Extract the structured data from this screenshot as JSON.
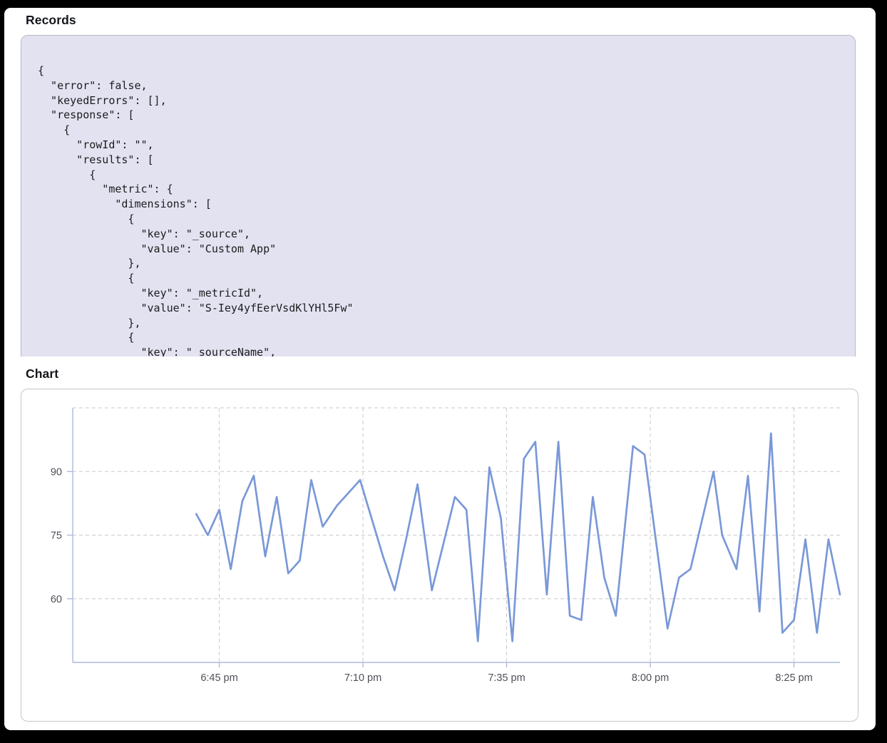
{
  "records": {
    "heading": "Records",
    "code_lines": [
      "{",
      "  \"error\": false,",
      "  \"keyedErrors\": [],",
      "  \"response\": [",
      "    {",
      "      \"rowId\": \"\",",
      "      \"results\": [",
      "        {",
      "          \"metric\": {",
      "            \"dimensions\": [",
      "              {",
      "                \"key\": \"_source\",",
      "                \"value\": \"Custom App\"",
      "              },",
      "              {",
      "                \"key\": \"_metricId\",",
      "                \"value\": \"S-Iey4yfEerVsdKlYHl5Fw\"",
      "              },",
      "              {",
      "                \"key\": \"_sourceName\","
    ]
  },
  "chart": {
    "heading": "Chart"
  },
  "palette": {
    "code_background": "#e3e2f1",
    "series_line": "#7a98d8",
    "axis": "#aeb9dd",
    "gridline": "#c9c9c9",
    "tick_label": "#4d5058"
  },
  "chart_data": {
    "type": "line",
    "title": "",
    "xlabel": "",
    "ylabel": "",
    "grid": true,
    "legend": "none",
    "x_unit": "minutes after 6:00 pm",
    "x_domain": [
      19.5,
      153
    ],
    "y_domain": [
      45,
      105
    ],
    "x_ticks": [
      {
        "t": 45,
        "label": "6:45 pm"
      },
      {
        "t": 70,
        "label": "7:10 pm"
      },
      {
        "t": 95,
        "label": "7:35 pm"
      },
      {
        "t": 120,
        "label": "8:00 pm"
      },
      {
        "t": 145,
        "label": "8:25 pm"
      }
    ],
    "y_ticks": [
      {
        "v": 60,
        "label": "60"
      },
      {
        "v": 75,
        "label": "75"
      },
      {
        "v": 90,
        "label": "90"
      }
    ],
    "top_boundary_value": 105,
    "x": [
      41,
      43,
      45,
      47,
      49,
      51,
      53,
      55,
      57,
      59,
      61,
      63,
      65.5,
      67.5,
      69.5,
      71.5,
      73.5,
      75.5,
      77.5,
      79.5,
      82,
      84,
      86,
      88,
      90,
      92,
      94,
      96,
      98,
      100,
      102,
      104,
      106,
      108,
      110,
      112,
      114,
      117,
      119,
      123,
      125,
      127,
      131,
      132.5,
      135,
      137,
      139,
      141,
      143,
      145,
      147,
      149,
      151,
      153
    ],
    "values": [
      80,
      75,
      81,
      67,
      83,
      89,
      70,
      84,
      66,
      69,
      88,
      77,
      82,
      85,
      88,
      79,
      70,
      62,
      74,
      87,
      62,
      73,
      84,
      81,
      50,
      91,
      79,
      50,
      93,
      97,
      61,
      97,
      56,
      55,
      84,
      65,
      56,
      96,
      94,
      53,
      65,
      67,
      90,
      75,
      67,
      89,
      57,
      99,
      52,
      55,
      74,
      52,
      74,
      61
    ]
  }
}
